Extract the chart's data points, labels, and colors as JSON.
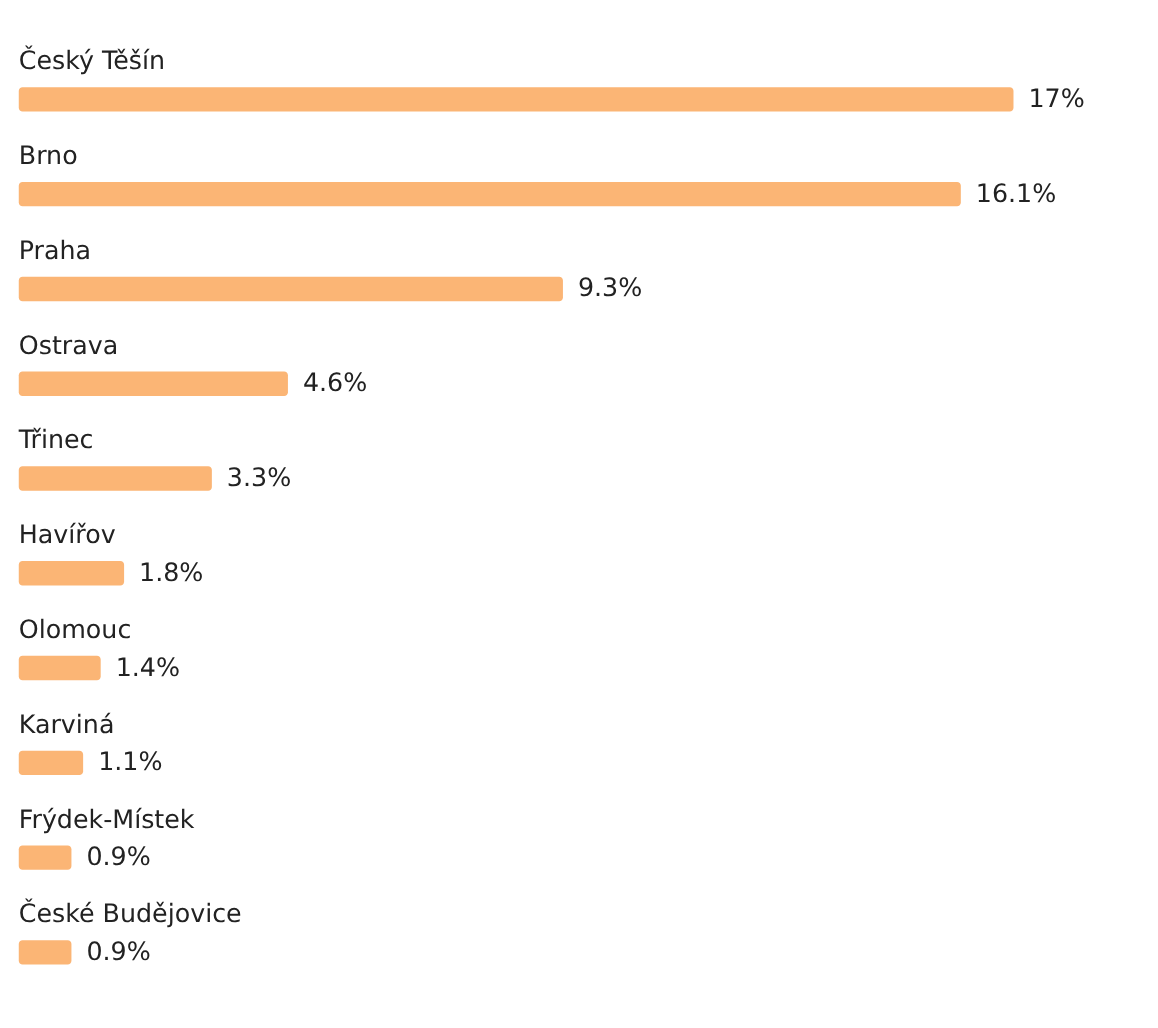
{
  "chart_data": {
    "type": "bar",
    "orientation": "horizontal",
    "categories": [
      "Český Těšín",
      "Brno",
      "Praha",
      "Ostrava",
      "Třinec",
      "Havířov",
      "Olomouc",
      "Karviná",
      "Frýdek-Místek",
      "České Budějovice"
    ],
    "values": [
      17,
      16.1,
      9.3,
      4.6,
      3.3,
      1.8,
      1.4,
      1.1,
      0.9,
      0.9
    ],
    "value_labels": [
      "17%",
      "16.1%",
      "9.3%",
      "4.6%",
      "3.3%",
      "1.8%",
      "1.4%",
      "1.1%",
      "0.9%",
      "0.9%"
    ],
    "color": "#fbb575",
    "xlim": [
      0,
      17
    ],
    "tick_labels": false
  }
}
